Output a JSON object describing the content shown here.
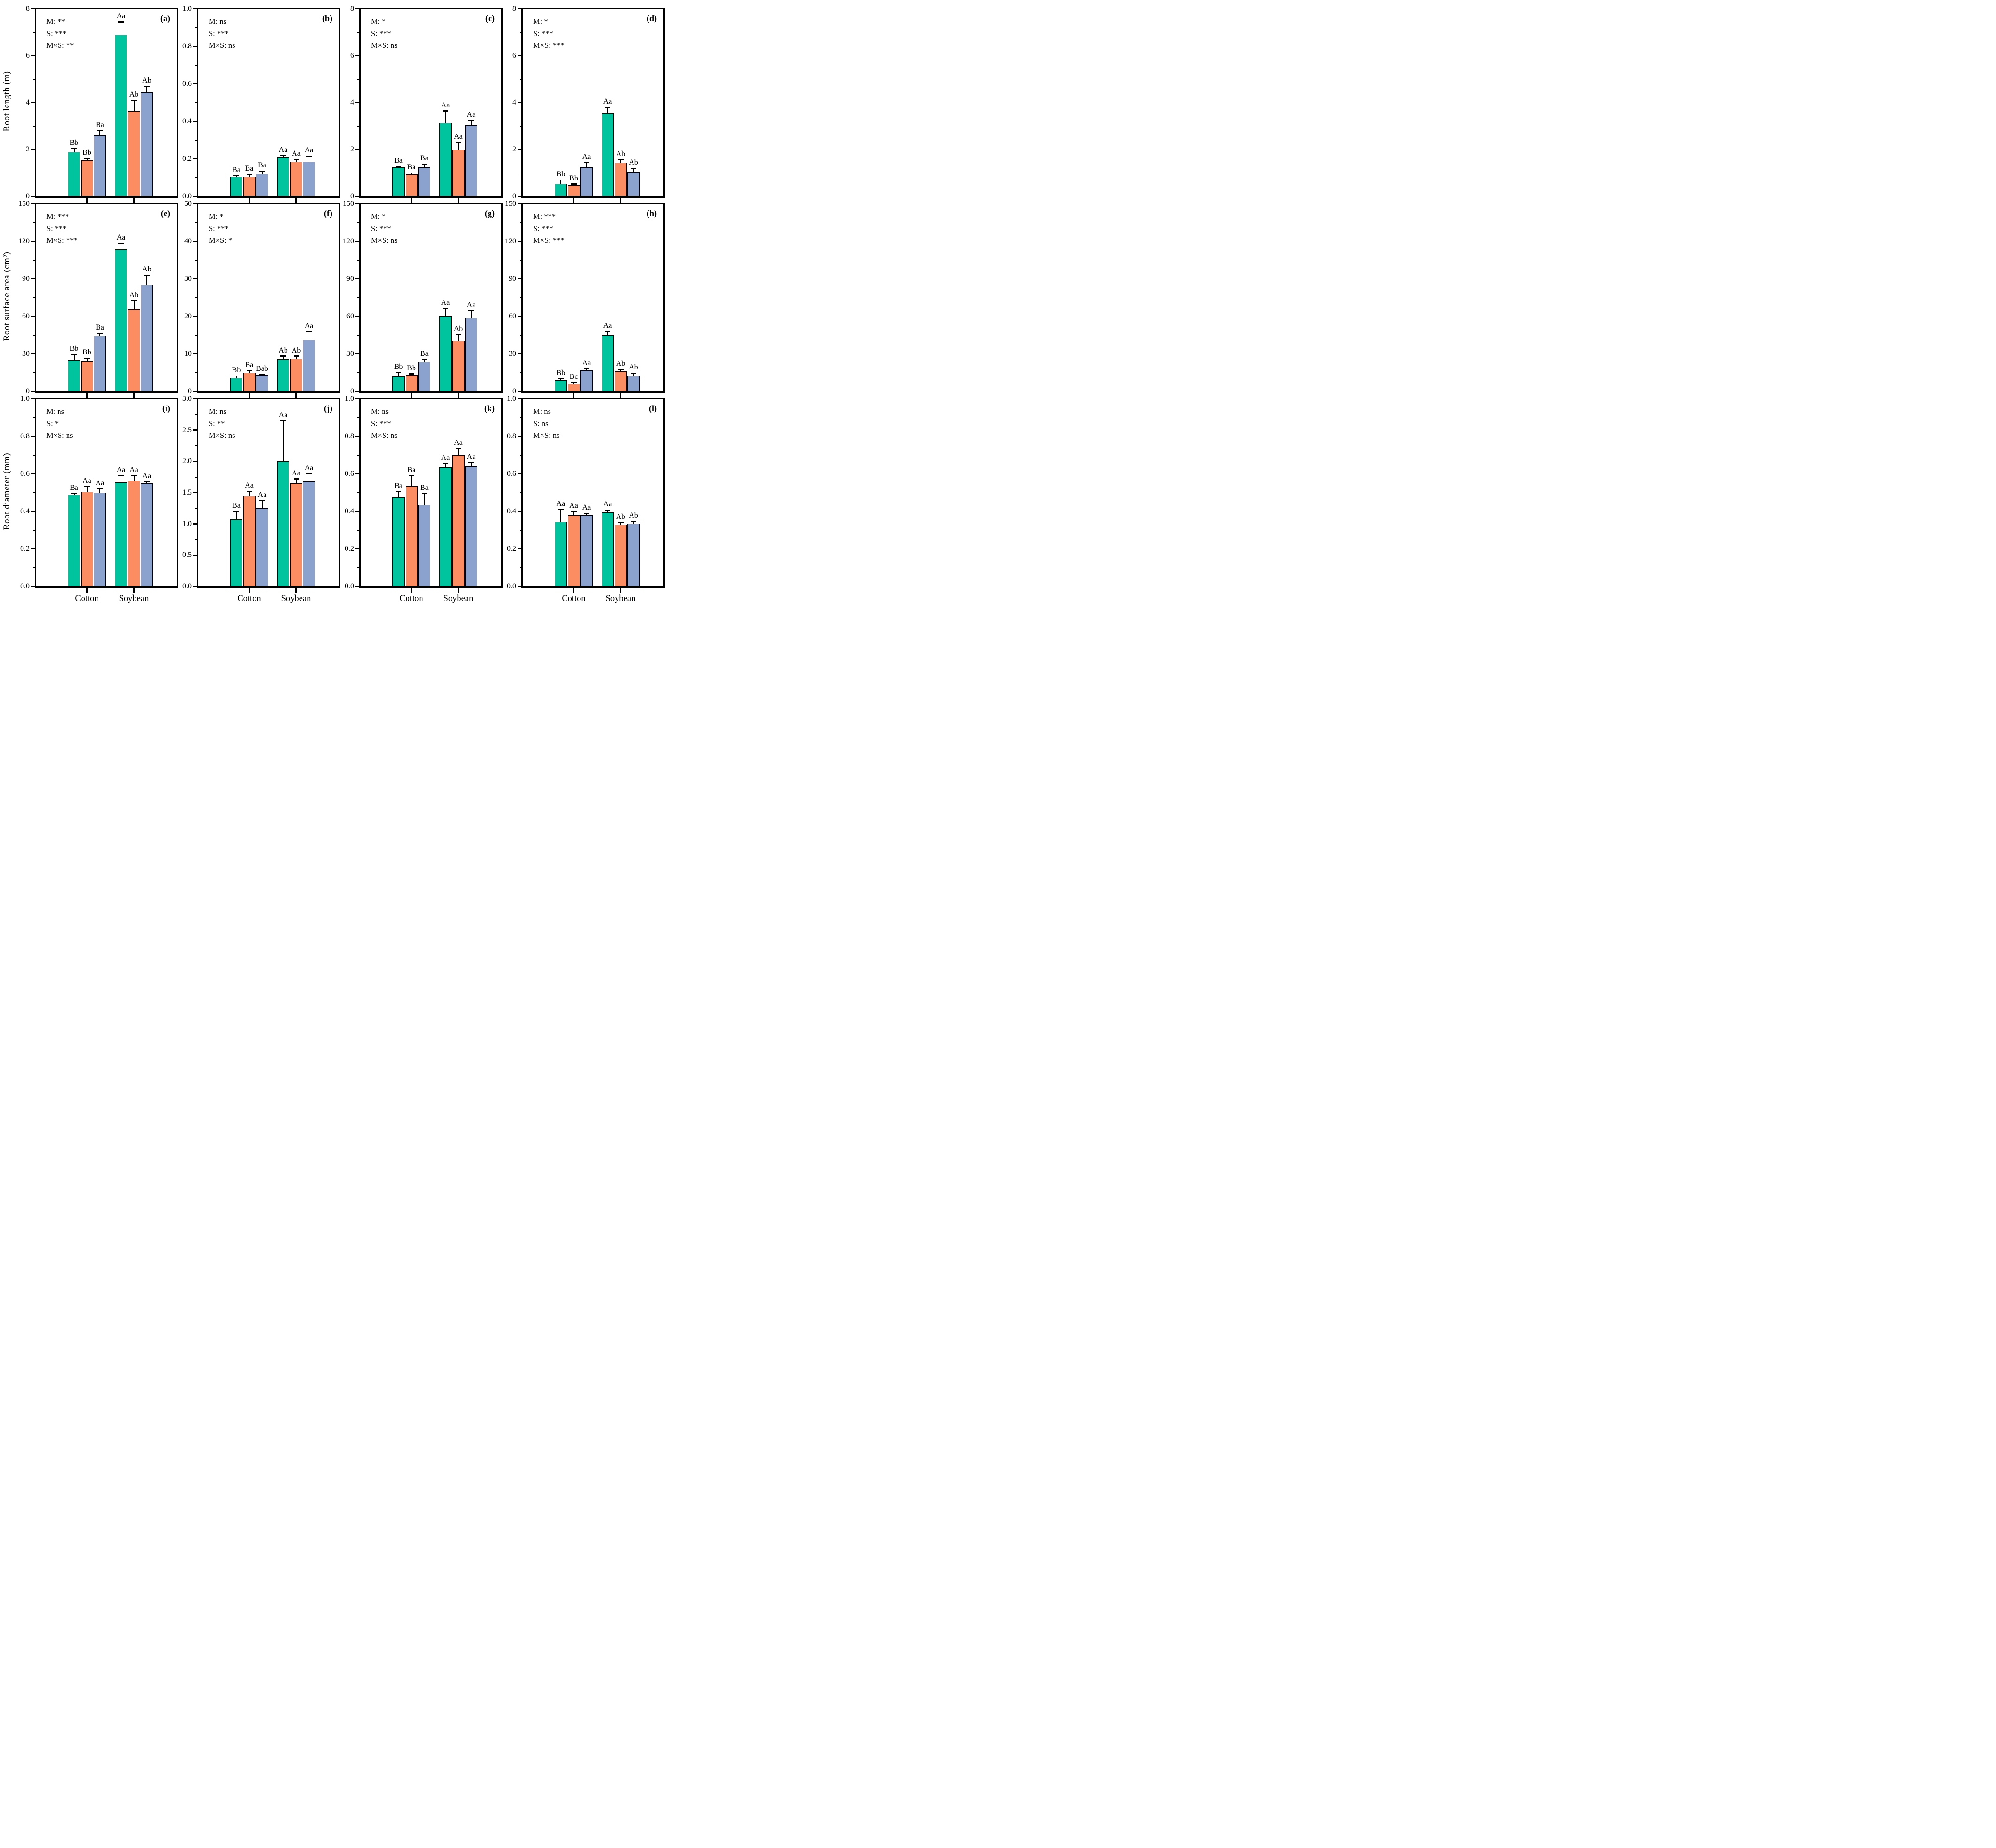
{
  "chart_data": {
    "type": "bar",
    "layout": {
      "rows": 3,
      "cols": 4,
      "grid": false,
      "legend": "none",
      "error_bars": "upper"
    },
    "row_ylabels": [
      "Root length (m)",
      "Root surface area (cm²)",
      "Root diameter (mm)"
    ],
    "categories": [
      "Cotton",
      "Soybean"
    ],
    "series_colors": [
      "#00C49E",
      "#FC8D62",
      "#8BA1CE"
    ],
    "panels": [
      {
        "letter": "(a)",
        "ylim": [
          0,
          8
        ],
        "major_tick": 2,
        "minor_tick": 1,
        "yticks": [
          "0",
          "2",
          "4",
          "6",
          "8"
        ],
        "stats_lines": [
          "M: **",
          "S: ***",
          "M×S: **"
        ],
        "groups": [
          {
            "category": "Cotton",
            "values": [
              1.9,
              1.55,
              2.6
            ],
            "errors": [
              0.15,
              0.08,
              0.2
            ],
            "letters": [
              "Bb",
              "Bb",
              "Ba"
            ]
          },
          {
            "category": "Soybean",
            "values": [
              6.9,
              3.65,
              4.45
            ],
            "errors": [
              0.55,
              0.45,
              0.25
            ],
            "letters": [
              "Aa",
              "Ab",
              "Ab"
            ]
          }
        ]
      },
      {
        "letter": "(b)",
        "ylim": [
          0,
          1.0
        ],
        "major_tick": 0.2,
        "minor_tick": 0.1,
        "yticks": [
          "0.0",
          "0.2",
          "0.4",
          "0.6",
          "0.8",
          "1.0"
        ],
        "stats_lines": [
          "M: ns",
          "S: ***",
          "M×S: ns"
        ],
        "groups": [
          {
            "category": "Cotton",
            "values": [
              0.105,
              0.105,
              0.12
            ],
            "errors": [
              0.004,
              0.012,
              0.015
            ],
            "letters": [
              "Ba",
              "Ba",
              "Ba"
            ]
          },
          {
            "category": "Soybean",
            "values": [
              0.21,
              0.185,
              0.185
            ],
            "errors": [
              0.008,
              0.012,
              0.03
            ],
            "letters": [
              "Aa",
              "Aa",
              "Aa"
            ]
          }
        ]
      },
      {
        "letter": "(c)",
        "ylim": [
          0,
          8
        ],
        "major_tick": 2,
        "minor_tick": 1,
        "yticks": [
          "0",
          "2",
          "4",
          "6",
          "8"
        ],
        "stats_lines": [
          "M: *",
          "S: ***",
          "M×S: ns"
        ],
        "groups": [
          {
            "category": "Cotton",
            "values": [
              1.25,
              0.95,
              1.25
            ],
            "errors": [
              0.03,
              0.05,
              0.13
            ],
            "letters": [
              "Ba",
              "Ba",
              "Ba"
            ]
          },
          {
            "category": "Soybean",
            "values": [
              3.15,
              2.0,
              3.05
            ],
            "errors": [
              0.5,
              0.3,
              0.2
            ],
            "letters": [
              "Aa",
              "Aa",
              "Aa"
            ]
          }
        ]
      },
      {
        "letter": "(d)",
        "ylim": [
          0,
          8
        ],
        "major_tick": 2,
        "minor_tick": 1,
        "yticks": [
          "0",
          "2",
          "4",
          "6",
          "8"
        ],
        "stats_lines": [
          "M: *",
          "S: ***",
          "M×S: ***"
        ],
        "groups": [
          {
            "category": "Cotton",
            "values": [
              0.55,
              0.48,
              1.25
            ],
            "errors": [
              0.15,
              0.05,
              0.2
            ],
            "letters": [
              "Bb",
              "Bb",
              "Aa"
            ]
          },
          {
            "category": "Soybean",
            "values": [
              3.55,
              1.45,
              1.05
            ],
            "errors": [
              0.25,
              0.12,
              0.15
            ],
            "letters": [
              "Aa",
              "Ab",
              "Ab"
            ]
          }
        ]
      },
      {
        "letter": "(e)",
        "ylim": [
          0,
          150
        ],
        "major_tick": 30,
        "minor_tick": 15,
        "yticks": [
          "0",
          "30",
          "60",
          "90",
          "120",
          "150"
        ],
        "stats_lines": [
          "M: ***",
          "S: ***",
          "M×S: ***"
        ],
        "groups": [
          {
            "category": "Cotton",
            "values": [
              25,
              24,
              44.5
            ],
            "errors": [
              4.5,
              2.5,
              2
            ],
            "letters": [
              "Bb",
              "Bb",
              "Ba"
            ]
          },
          {
            "category": "Soybean",
            "values": [
              113.5,
              65.5,
              85
            ],
            "errors": [
              5,
              7,
              8
            ],
            "letters": [
              "Aa",
              "Ab",
              "Ab"
            ]
          }
        ]
      },
      {
        "letter": "(f)",
        "ylim": [
          0,
          50
        ],
        "major_tick": 10,
        "minor_tick": 5,
        "yticks": [
          "0",
          "10",
          "20",
          "30",
          "40",
          "50"
        ],
        "stats_lines": [
          "M: *",
          "S: ***",
          "M×S: *"
        ],
        "groups": [
          {
            "category": "Cotton",
            "values": [
              3.6,
              5.0,
              4.4
            ],
            "errors": [
              0.5,
              0.5,
              0.15
            ],
            "letters": [
              "Bb",
              "Ba",
              "Bab"
            ]
          },
          {
            "category": "Soybean",
            "values": [
              8.6,
              8.7,
              13.7
            ],
            "errors": [
              0.8,
              0.7,
              2.2
            ],
            "letters": [
              "Ab",
              "Ab",
              "Aa"
            ]
          }
        ]
      },
      {
        "letter": "(g)",
        "ylim": [
          0,
          150
        ],
        "major_tick": 30,
        "minor_tick": 15,
        "yticks": [
          "0",
          "30",
          "60",
          "90",
          "120",
          "150"
        ],
        "stats_lines": [
          "M: *",
          "S: ***",
          "M×S: ns"
        ],
        "groups": [
          {
            "category": "Cotton",
            "values": [
              12,
              13,
              23.5
            ],
            "errors": [
              3,
              1,
              2
            ],
            "letters": [
              "Bb",
              "Bb",
              "Ba"
            ]
          },
          {
            "category": "Soybean",
            "values": [
              60,
              40.5,
              59
            ],
            "errors": [
              6.5,
              5,
              5.5
            ],
            "letters": [
              "Aa",
              "Ab",
              "Aa"
            ]
          }
        ]
      },
      {
        "letter": "(h)",
        "ylim": [
          0,
          150
        ],
        "major_tick": 30,
        "minor_tick": 15,
        "yticks": [
          "0",
          "30",
          "60",
          "90",
          "120",
          "150"
        ],
        "stats_lines": [
          "M: ***",
          "S: ***",
          "M×S: ***"
        ],
        "groups": [
          {
            "category": "Cotton",
            "values": [
              9,
              6,
              17
            ],
            "errors": [
              1,
              1,
              1
            ],
            "letters": [
              "Bb",
              "Bc",
              "Aa"
            ]
          },
          {
            "category": "Soybean",
            "values": [
              45,
              16,
              12.5
            ],
            "errors": [
              3,
              1.5,
              2
            ],
            "letters": [
              "Aa",
              "Ab",
              "Ab"
            ]
          }
        ]
      },
      {
        "letter": "(i)",
        "ylim": [
          0,
          1.0
        ],
        "major_tick": 0.2,
        "minor_tick": 0.1,
        "yticks": [
          "0.0",
          "0.2",
          "0.4",
          "0.6",
          "0.8",
          "1.0"
        ],
        "stats_lines": [
          "M: ns",
          "S: *",
          "M×S: ns"
        ],
        "groups": [
          {
            "category": "Cotton",
            "values": [
              0.49,
              0.505,
              0.5
            ],
            "errors": [
              0.005,
              0.028,
              0.02
            ],
            "letters": [
              "Ba",
              "Aa",
              "Aa"
            ]
          },
          {
            "category": "Soybean",
            "values": [
              0.555,
              0.565,
              0.55
            ],
            "errors": [
              0.035,
              0.025,
              0.008
            ],
            "letters": [
              "Aa",
              "Aa",
              "Aa"
            ]
          }
        ]
      },
      {
        "letter": "(j)",
        "ylim": [
          0,
          3.0
        ],
        "major_tick": 0.5,
        "minor_tick": 0.25,
        "yticks": [
          "0.0",
          "0.5",
          "1.0",
          "1.5",
          "2.0",
          "2.5",
          "3.0"
        ],
        "stats_lines": [
          "M: ns",
          "S: **",
          "M×S: ns"
        ],
        "groups": [
          {
            "category": "Cotton",
            "values": [
              1.07,
              1.45,
              1.25
            ],
            "errors": [
              0.13,
              0.07,
              0.12
            ],
            "letters": [
              "Ba",
              "Aa",
              "Aa"
            ]
          },
          {
            "category": "Soybean",
            "values": [
              2.0,
              1.65,
              1.68
            ],
            "errors": [
              0.65,
              0.07,
              0.12
            ],
            "letters": [
              "Aa",
              "Aa",
              "Aa"
            ]
          }
        ]
      },
      {
        "letter": "(k)",
        "ylim": [
          0,
          1.0
        ],
        "major_tick": 0.2,
        "minor_tick": 0.1,
        "yticks": [
          "0.0",
          "0.2",
          "0.4",
          "0.6",
          "0.8",
          "1.0"
        ],
        "stats_lines": [
          "M: ns",
          "S: ***",
          "M×S: ns"
        ],
        "groups": [
          {
            "category": "Cotton",
            "values": [
              0.475,
              0.535,
              0.435
            ],
            "errors": [
              0.03,
              0.055,
              0.06
            ],
            "letters": [
              "Ba",
              "Ba",
              "Ba"
            ]
          },
          {
            "category": "Soybean",
            "values": [
              0.635,
              0.7,
              0.64
            ],
            "errors": [
              0.02,
              0.035,
              0.02
            ],
            "letters": [
              "Aa",
              "Aa",
              "Aa"
            ]
          }
        ]
      },
      {
        "letter": "(l)",
        "ylim": [
          0,
          1.0
        ],
        "major_tick": 0.2,
        "minor_tick": 0.1,
        "yticks": [
          "0.0",
          "0.2",
          "0.4",
          "0.6",
          "0.8",
          "1.0"
        ],
        "stats_lines": [
          "M: ns",
          "S: ns",
          "M×S: ns"
        ],
        "groups": [
          {
            "category": "Cotton",
            "values": [
              0.345,
              0.38,
              0.38
            ],
            "errors": [
              0.065,
              0.02,
              0.01
            ],
            "letters": [
              "Aa",
              "Aa",
              "Aa"
            ]
          },
          {
            "category": "Soybean",
            "values": [
              0.395,
              0.33,
              0.335
            ],
            "errors": [
              0.012,
              0.01,
              0.012
            ],
            "letters": [
              "Aa",
              "Ab",
              "Ab"
            ]
          }
        ]
      }
    ]
  }
}
